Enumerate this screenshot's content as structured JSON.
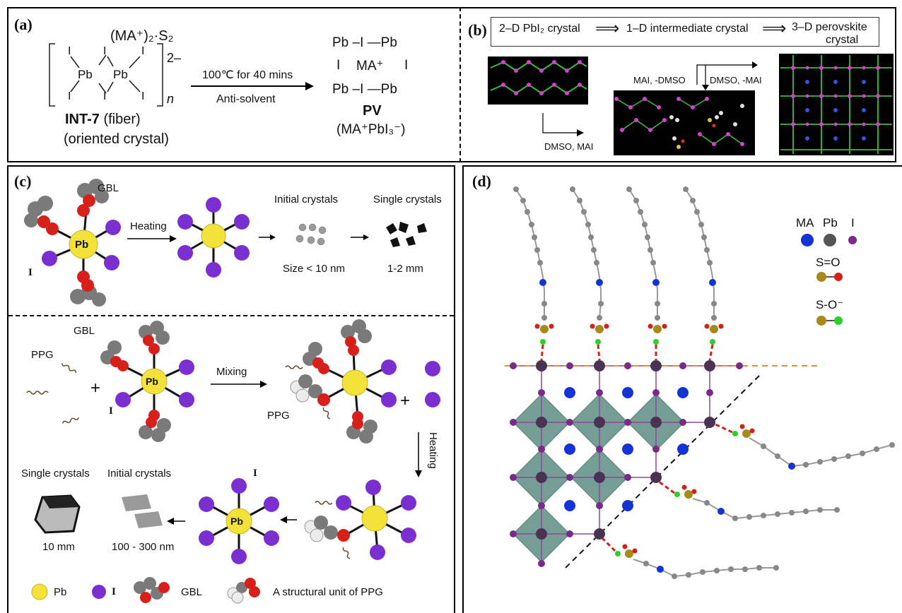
{
  "panel_a": {
    "label": "(a)",
    "counter_ion": "(MA⁺)₂·S₂",
    "charge": "2–",
    "repeat": "n",
    "pb": "Pb",
    "iodide": "I",
    "int_name": "INT-7",
    "int_type": " (fiber)",
    "int_sub": "(oriented crystal)",
    "condition_top": "100℃ for 40 mins",
    "condition_bottom": "Anti-solvent",
    "pv_top": "Pb –I —Pb",
    "pv_left_i": "I",
    "pv_ma": "MA⁺",
    "pv_right_i": "I",
    "pv_bottom": "Pb –I —Pb",
    "pv_name": "PV",
    "pv_formula": "(MA⁺PbI₃⁻)"
  },
  "panel_b": {
    "label": "(b)",
    "stage1": "2–D PbI₂ crystal",
    "stage2": "1–D intermediate crystal",
    "stage3a": "3–D perovskite",
    "stage3b": "crystal",
    "arrow_left": "MAI, -DMSO",
    "arrow_right": "DMSO, -MAI",
    "arrow_bottom": "DMSO, MAI"
  },
  "panel_c": {
    "label": "(c)",
    "top": {
      "gbl": "GBL",
      "pb": "Pb",
      "i": "I",
      "heating": "Heating",
      "initial": "Initial crystals",
      "single": "Single crystals",
      "size_initial": "Size < 10 nm",
      "size_single": "1-2 mm"
    },
    "bottom": {
      "gbl": "GBL",
      "ppg": "PPG",
      "plus": "+",
      "pb": "Pb",
      "i": "I",
      "mixing": "Mixing",
      "ppg2": "PPG",
      "plus2": "+",
      "heating": "Heating",
      "single": "Single crystals",
      "initial": "Initial crystals",
      "size_single": "10 mm",
      "size_initial": "100 - 300 nm",
      "i2": "I",
      "pb2": "Pb"
    },
    "legend": {
      "pb": "Pb",
      "i": "I",
      "gbl": "GBL",
      "ppg": "A structural unit of PPG"
    }
  },
  "panel_d": {
    "label": "(d)",
    "legend_ma": "MA",
    "legend_pb": "Pb",
    "legend_i": "I",
    "so_double": "S=O",
    "so_single": "S-O⁻"
  },
  "colors": {
    "pb_yellow": "#f2e23a",
    "iodide_purple": "#7b2fd0",
    "ma_blue": "#1433d6",
    "oxygen_red": "#d8201a",
    "carbon_gray": "#777777",
    "octahedron_teal": "#5e8f84",
    "orange_dash": "#f08a2a"
  }
}
